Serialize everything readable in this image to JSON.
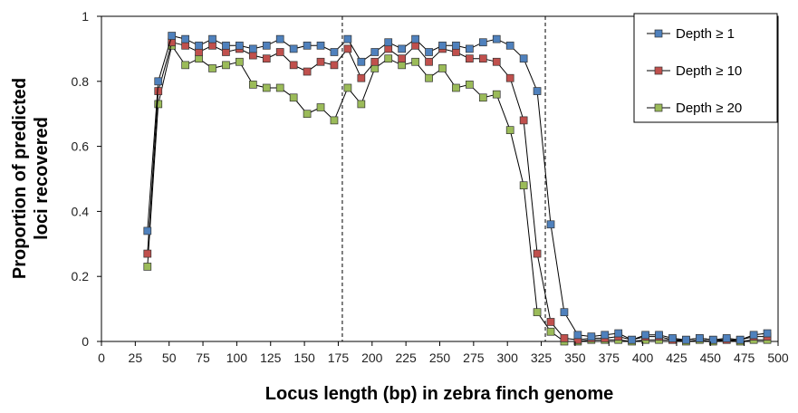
{
  "chart_data": {
    "type": "line",
    "xlabel": "Locus length (bp) in zebra finch genome",
    "ylabel_lines": [
      "Proportion of predicted",
      "loci recovered"
    ],
    "xlim": [
      0,
      500
    ],
    "ylim": [
      0,
      1
    ],
    "xticks": [
      0,
      25,
      50,
      75,
      100,
      125,
      150,
      175,
      200,
      225,
      250,
      275,
      300,
      325,
      350,
      375,
      400,
      425,
      450,
      475,
      500
    ],
    "yticks": [
      0,
      0.2,
      0.4,
      0.6,
      0.8,
      1
    ],
    "ytick_labels": [
      "0",
      "0.2",
      "0.4",
      "0.6",
      "0.8",
      "1"
    ],
    "grid": false,
    "legend_position": "top-right",
    "vlines": [
      178,
      328
    ],
    "x": [
      34,
      42,
      52,
      62,
      72,
      82,
      92,
      102,
      112,
      122,
      132,
      142,
      152,
      162,
      172,
      182,
      192,
      202,
      212,
      222,
      232,
      242,
      252,
      262,
      272,
      282,
      292,
      302,
      312,
      322,
      332,
      342,
      352,
      362,
      372,
      382,
      392,
      402,
      412,
      422,
      432,
      442,
      452,
      462,
      472,
      482,
      492
    ],
    "series": [
      {
        "name": "Depth ≥ 1",
        "color": "#4f81bd",
        "values": [
          0.34,
          0.8,
          0.94,
          0.93,
          0.91,
          0.93,
          0.91,
          0.91,
          0.9,
          0.91,
          0.93,
          0.9,
          0.91,
          0.91,
          0.89,
          0.93,
          0.86,
          0.89,
          0.92,
          0.9,
          0.93,
          0.89,
          0.91,
          0.91,
          0.9,
          0.92,
          0.93,
          0.91,
          0.87,
          0.77,
          0.36,
          0.09,
          0.02,
          0.015,
          0.02,
          0.025,
          0.005,
          0.02,
          0.02,
          0.01,
          0.005,
          0.01,
          0.005,
          0.01,
          0.005,
          0.02,
          0.025
        ]
      },
      {
        "name": "Depth ≥ 10",
        "color": "#c0504d",
        "values": [
          0.27,
          0.77,
          0.92,
          0.91,
          0.89,
          0.91,
          0.89,
          0.9,
          0.88,
          0.87,
          0.89,
          0.85,
          0.83,
          0.86,
          0.85,
          0.9,
          0.81,
          0.86,
          0.9,
          0.87,
          0.91,
          0.86,
          0.9,
          0.89,
          0.87,
          0.87,
          0.86,
          0.81,
          0.68,
          0.27,
          0.06,
          0.01,
          0.005,
          0.01,
          0.01,
          0.015,
          0.005,
          0.015,
          0.015,
          0.005,
          0.005,
          0.01,
          0.005,
          0.005,
          0.005,
          0.015,
          0.015
        ]
      },
      {
        "name": "Depth ≥ 20",
        "color": "#9bbb59",
        "values": [
          0.23,
          0.73,
          0.91,
          0.85,
          0.87,
          0.84,
          0.85,
          0.86,
          0.79,
          0.78,
          0.78,
          0.75,
          0.7,
          0.72,
          0.68,
          0.78,
          0.73,
          0.84,
          0.87,
          0.85,
          0.86,
          0.81,
          0.84,
          0.78,
          0.79,
          0.75,
          0.76,
          0.65,
          0.48,
          0.09,
          0.03,
          0.0,
          0.0,
          0.005,
          0.005,
          0.005,
          0.0,
          0.005,
          0.005,
          0.005,
          0.0,
          0.005,
          0.0,
          0.005,
          0.0,
          0.005,
          0.005
        ]
      }
    ]
  }
}
